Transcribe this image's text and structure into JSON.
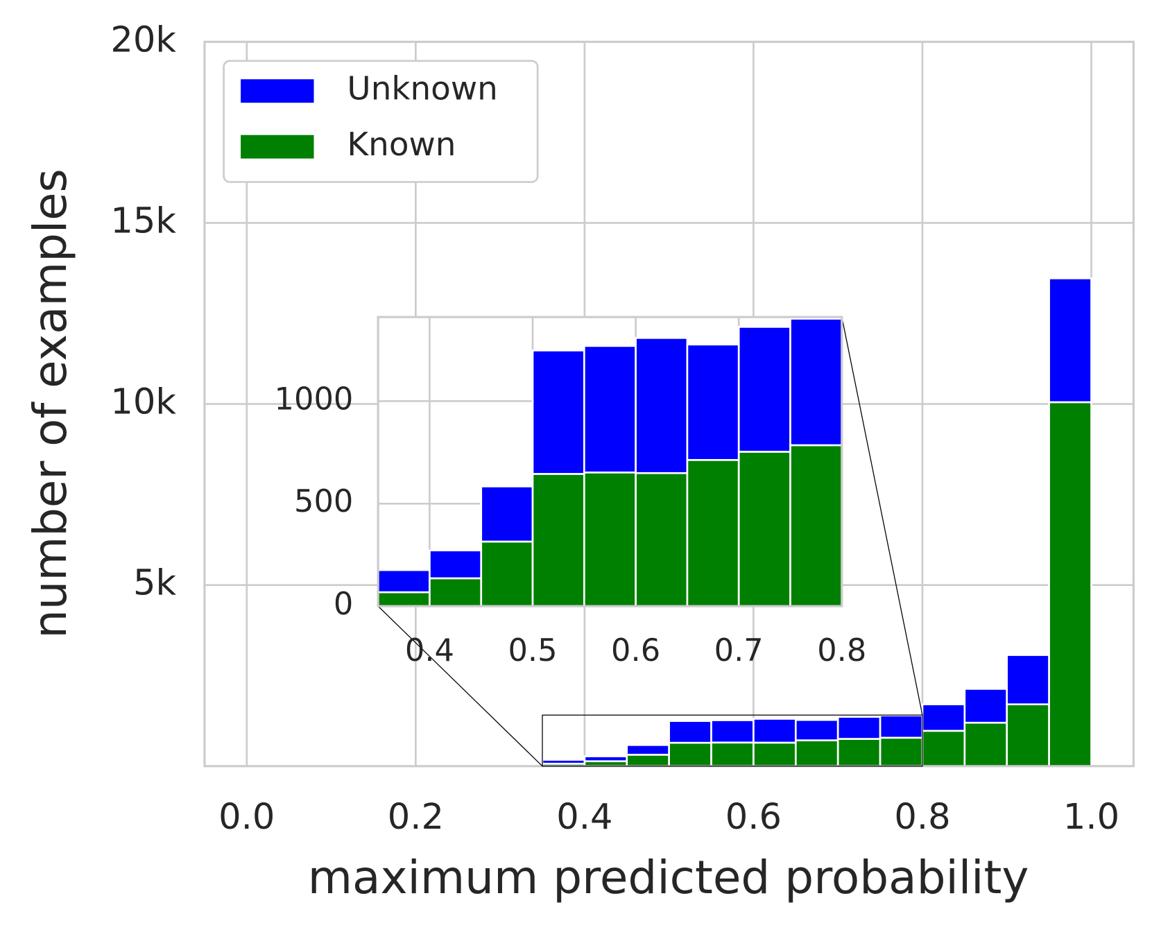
{
  "chart_data": {
    "type": "histogram",
    "stacked": true,
    "x_label": "maximum predicted probability",
    "y_label": "number of examples",
    "bins": [
      0.35,
      0.4,
      0.45,
      0.5,
      0.55,
      0.6,
      0.65,
      0.7,
      0.75,
      0.8,
      0.85,
      0.9,
      0.95,
      1.0
    ],
    "series": [
      {
        "name": "Unknown",
        "color": "#0000ff",
        "values": [
          108,
          136,
          269,
          602,
          617,
          659,
          563,
          609,
          617,
          731,
          935,
          1362,
          3420
        ]
      },
      {
        "name": "Known",
        "color": "#008000",
        "values": [
          68,
          136,
          315,
          645,
          652,
          649,
          713,
          753,
          785,
          976,
          1199,
          1707,
          10050
        ]
      }
    ],
    "xlim": [
      -0.05,
      1.05
    ],
    "ylim": [
      0,
      20000
    ],
    "xticks": [
      {
        "value": 0,
        "label": "0.0"
      },
      0.2,
      0.4,
      0.6,
      0.8,
      {
        "value": 1,
        "label": "1.0"
      }
    ],
    "yticks": [
      {
        "value": 5000,
        "label": "5k"
      },
      {
        "value": 10000,
        "label": "10k"
      },
      {
        "value": 15000,
        "label": "15k"
      },
      {
        "value": 20000,
        "label": "20k"
      }
    ],
    "grid": true,
    "legend": "upper left",
    "inset": {
      "xlim": [
        0.35,
        0.8
      ],
      "ylim": [
        0,
        1410
      ],
      "xticks": [
        0.4,
        0.5,
        0.6,
        0.7,
        0.8
      ],
      "yticks": [
        0,
        500,
        1000
      ],
      "grid": true
    }
  }
}
